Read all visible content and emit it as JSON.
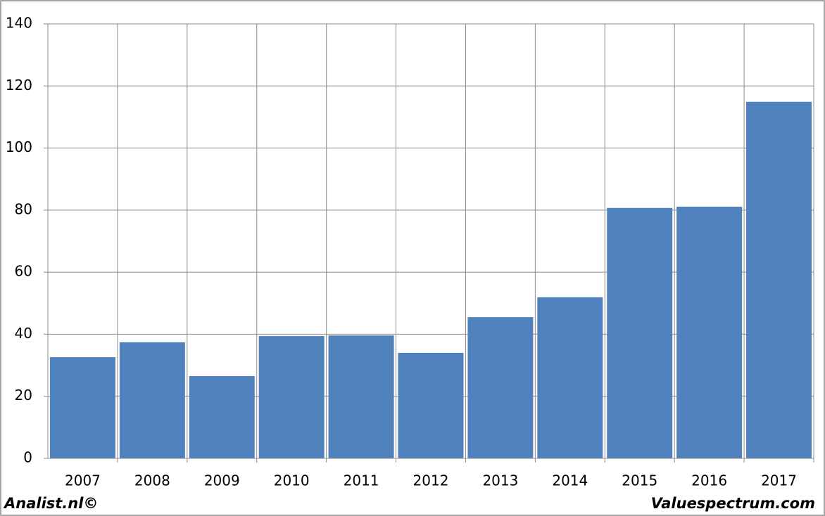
{
  "chart_data": {
    "type": "bar",
    "categories": [
      "2007",
      "2008",
      "2009",
      "2010",
      "2011",
      "2012",
      "2013",
      "2014",
      "2015",
      "2016",
      "2017"
    ],
    "values": [
      32.6,
      37.4,
      26.5,
      39.4,
      39.6,
      34.0,
      45.5,
      51.9,
      80.7,
      81.1,
      114.9
    ],
    "color": "#4f81bd",
    "ylim": [
      0,
      140
    ],
    "yticks": [
      0,
      20,
      40,
      60,
      80,
      100,
      120,
      140
    ],
    "grid": true
  },
  "footer": {
    "left": "Analist.nl©",
    "right": "Valuespectrum.com"
  }
}
